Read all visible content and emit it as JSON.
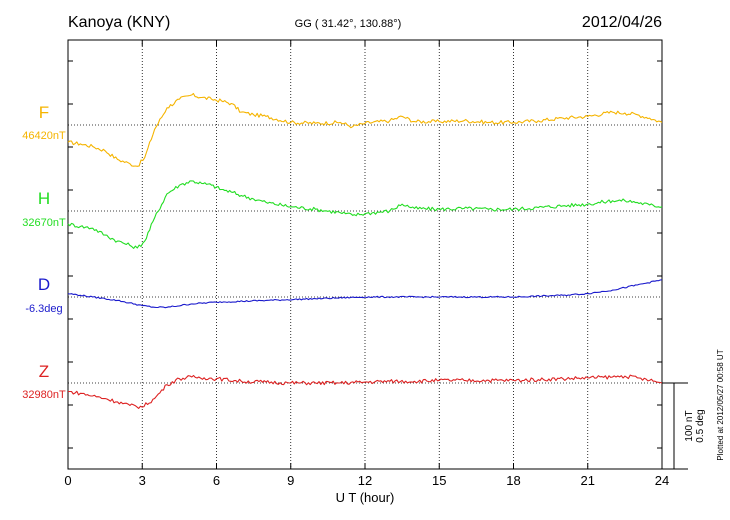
{
  "header": {
    "station": "Kanoya (KNY)",
    "coords": "GG ( 31.42°, 130.88°)",
    "date": "2012/04/26"
  },
  "footer_note": "Plotted at 2012/05/27 00:58 UT",
  "scale_bar": {
    "line1": "100 nT",
    "line2": "0.5 deg"
  },
  "colors": {
    "F": "#f5b400",
    "H": "#22dd22",
    "D": "#1a1acc",
    "Z": "#dd2222",
    "axis": "#000000"
  },
  "chart_data": {
    "type": "line",
    "title": "Kanoya (KNY)",
    "xlabel": "U T (hour)",
    "ylabel": "",
    "xlim": [
      0,
      24
    ],
    "xticks": [
      0,
      3,
      6,
      9,
      12,
      15,
      18,
      21,
      24
    ],
    "x_tick_labels": [
      "0",
      "3",
      "6",
      "9",
      "12",
      "15",
      "18",
      "21",
      "24"
    ],
    "grid": "dotted vertical every 3 h; dotted baseline per component",
    "scale": {
      "nT_per_bar": 100,
      "deg_per_bar": 0.5
    },
    "series": [
      {
        "name": "F",
        "baseline_label": "46420nT",
        "unit": "nT",
        "x": [
          0,
          0.5,
          1,
          1.5,
          2,
          2.5,
          2.8,
          3.1,
          3.5,
          4,
          4.5,
          5,
          5.4,
          5.8,
          6.2,
          6.6,
          7,
          7.5,
          8,
          9,
          10,
          11,
          11.5,
          12,
          13,
          13.5,
          14,
          15,
          16,
          17,
          18,
          19,
          20,
          21,
          22,
          22.5,
          23,
          23.5,
          24
        ],
        "y": [
          -20,
          -22,
          -25,
          -30,
          -40,
          -45,
          -48,
          -38,
          -5,
          20,
          30,
          35,
          32,
          30,
          28,
          25,
          15,
          12,
          10,
          3,
          2,
          3,
          -2,
          2,
          5,
          10,
          4,
          4,
          5,
          3,
          3,
          5,
          8,
          10,
          15,
          14,
          12,
          8,
          3
        ]
      },
      {
        "name": "H",
        "baseline_label": "32670nT",
        "unit": "nT",
        "x": [
          0,
          0.5,
          1,
          1.5,
          2,
          2.5,
          2.8,
          3.1,
          3.5,
          4,
          4.5,
          5,
          5.4,
          5.8,
          6.2,
          6.6,
          7,
          7.5,
          8,
          9,
          10,
          11,
          11.5,
          12,
          13,
          13.5,
          14,
          15,
          16,
          17,
          18,
          19,
          20,
          21,
          22,
          22.5,
          23,
          23.5,
          24
        ],
        "y": [
          -15,
          -18,
          -20,
          -28,
          -35,
          -40,
          -43,
          -35,
          -8,
          20,
          30,
          35,
          32,
          30,
          25,
          22,
          18,
          14,
          10,
          5,
          2,
          -2,
          -5,
          -3,
          0,
          8,
          3,
          2,
          3,
          2,
          2,
          4,
          6,
          8,
          12,
          12,
          10,
          7,
          5
        ]
      },
      {
        "name": "D",
        "baseline_label": "-6.3deg",
        "unit": "deg",
        "x": [
          0,
          0.5,
          1,
          1.5,
          2,
          3,
          3.5,
          4,
          5,
          6,
          8,
          10,
          12,
          15,
          18,
          20,
          21,
          22,
          23,
          24
        ],
        "y": [
          0.02,
          0.01,
          0.0,
          -0.01,
          -0.02,
          -0.05,
          -0.06,
          -0.06,
          -0.04,
          -0.03,
          -0.02,
          -0.01,
          0.0,
          0.0,
          0.0,
          0.01,
          0.02,
          0.04,
          0.07,
          0.1
        ]
      },
      {
        "name": "Z",
        "baseline_label": "32980nT",
        "unit": "nT",
        "x": [
          0,
          0.5,
          1,
          1.5,
          2,
          2.5,
          3,
          3.5,
          4,
          4.5,
          5,
          5.5,
          6,
          7,
          8,
          9,
          10,
          11,
          12,
          13,
          14,
          15,
          16,
          17,
          18,
          19,
          20,
          21,
          22,
          22.5,
          23,
          23.5,
          24
        ],
        "y": [
          -10,
          -12,
          -15,
          -18,
          -22,
          -26,
          -28,
          -18,
          -2,
          5,
          7,
          6,
          5,
          2,
          1,
          0,
          0,
          0,
          1,
          2,
          2,
          3,
          3,
          3,
          3,
          4,
          5,
          6,
          7,
          8,
          6,
          3,
          0
        ]
      }
    ]
  }
}
